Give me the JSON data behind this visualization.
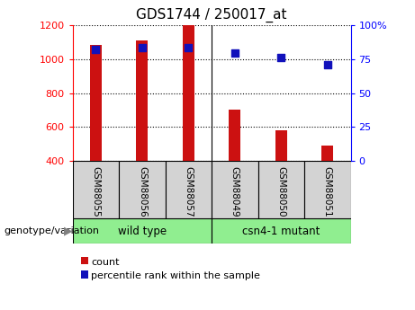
{
  "title": "GDS1744 / 250017_at",
  "categories": [
    "GSM88055",
    "GSM88056",
    "GSM88057",
    "GSM88049",
    "GSM88050",
    "GSM88051"
  ],
  "counts": [
    1080,
    1110,
    1200,
    700,
    580,
    490
  ],
  "percentile_ranks": [
    82,
    83,
    83,
    79,
    76,
    71
  ],
  "ylim_left": [
    400,
    1200
  ],
  "ylim_right": [
    0,
    100
  ],
  "yticks_left": [
    400,
    600,
    800,
    1000,
    1200
  ],
  "yticks_right": [
    0,
    25,
    50,
    75,
    100
  ],
  "bar_color": "#cc1111",
  "dot_color": "#1111bb",
  "group_label": "genotype/variation",
  "legend_count_label": "count",
  "legend_pct_label": "percentile rank within the sample",
  "bar_width": 0.25,
  "dot_size": 40,
  "label_bg": "#d3d3d3",
  "group1_label": "wild type",
  "group2_label": "csn4-1 mutant",
  "group_bg": "#90ee90"
}
